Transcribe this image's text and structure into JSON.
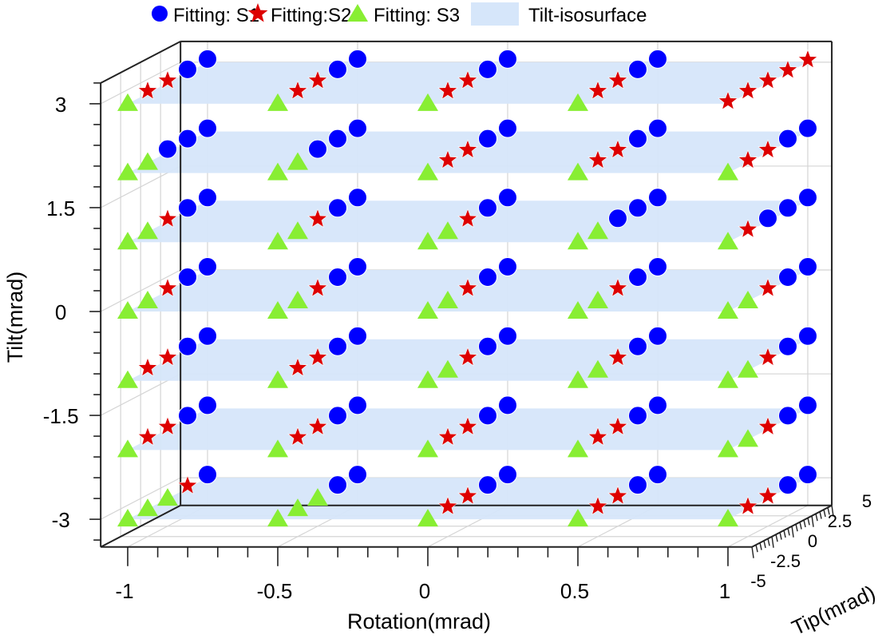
{
  "chart_data": {
    "type": "scatter3d",
    "xlabel": "Rotation(mrad)",
    "ylabel": "Tip(mrad)",
    "zlabel": "Tilt(mrad)",
    "xlim": [
      -1.09,
      1.08
    ],
    "ylim": [
      -5,
      5
    ],
    "zlim": [
      -3.4,
      3.3
    ],
    "x_ticks": [
      "-1",
      "-0.5",
      "0",
      "0.5",
      "1"
    ],
    "x_tick_values": [
      -1,
      -0.5,
      0,
      0.5,
      1
    ],
    "y_ticks": [
      "-5",
      "-2.5",
      "0",
      "2.5",
      "5"
    ],
    "y_tick_values": [
      -5,
      -2.5,
      0,
      2.5,
      5
    ],
    "z_ticks": [
      "3",
      "1.5",
      "0",
      "-1.5",
      "-3"
    ],
    "z_tick_values": [
      3,
      1.5,
      0,
      -1.5,
      -3
    ],
    "grid": true,
    "legend_position": "top",
    "series": [
      {
        "id": "S1",
        "name": "Fitting: S1",
        "marker": "circle",
        "color": "#0000ff"
      },
      {
        "id": "S2",
        "name": "Fitting:S2",
        "marker": "star",
        "color": "#dd0000"
      },
      {
        "id": "S3",
        "name": "Fitting: S3",
        "marker": "triangle",
        "color": "#88ee33"
      }
    ],
    "surface": {
      "name": "Tilt-isosurface",
      "color": "#d6e6fa",
      "tilt_levels": [
        3,
        2,
        1,
        0,
        -1,
        -2,
        -3
      ]
    },
    "tip_values": [
      -5,
      -2.5,
      0,
      2.5,
      5
    ],
    "groups": [
      {
        "rotation": -1,
        "tilt": 3,
        "fit": [
          "S3",
          "S2",
          "S2",
          "S1",
          "S1"
        ]
      },
      {
        "rotation": -1,
        "tilt": 2,
        "fit": [
          "S3",
          "S3",
          "S1",
          "S1",
          "S1"
        ]
      },
      {
        "rotation": -1,
        "tilt": 1,
        "fit": [
          "S3",
          "S3",
          "S2",
          "S1",
          "S1"
        ]
      },
      {
        "rotation": -1,
        "tilt": 0,
        "fit": [
          "S3",
          "S3",
          "S2",
          "S1",
          "S1"
        ]
      },
      {
        "rotation": -1,
        "tilt": -1,
        "fit": [
          "S3",
          "S2",
          "S2",
          "S1",
          "S1"
        ]
      },
      {
        "rotation": -1,
        "tilt": -2,
        "fit": [
          "S3",
          "S2",
          "S2",
          "S1",
          "S1"
        ]
      },
      {
        "rotation": -1,
        "tilt": -3,
        "fit": [
          "S3",
          "S3",
          "S3",
          "S2",
          "S1"
        ]
      },
      {
        "rotation": -0.5,
        "tilt": 3,
        "fit": [
          "S3",
          "S2",
          "S2",
          "S1",
          "S1"
        ]
      },
      {
        "rotation": -0.5,
        "tilt": 2,
        "fit": [
          "S3",
          "S3",
          "S1",
          "S1",
          "S1"
        ]
      },
      {
        "rotation": -0.5,
        "tilt": 1,
        "fit": [
          "S3",
          "S3",
          "S2",
          "S1",
          "S1"
        ]
      },
      {
        "rotation": -0.5,
        "tilt": 0,
        "fit": [
          "S3",
          "S3",
          "S2",
          "S1",
          "S1"
        ]
      },
      {
        "rotation": -0.5,
        "tilt": -1,
        "fit": [
          "S3",
          "S2",
          "S2",
          "S1",
          "S1"
        ]
      },
      {
        "rotation": -0.5,
        "tilt": -2,
        "fit": [
          "S3",
          "S2",
          "S2",
          "S1",
          "S1"
        ]
      },
      {
        "rotation": -0.5,
        "tilt": -3,
        "fit": [
          "S3",
          "S3",
          "S3",
          "S1",
          "S1"
        ]
      },
      {
        "rotation": 0,
        "tilt": 3,
        "fit": [
          "S3",
          "S2",
          "S2",
          "S1",
          "S1"
        ]
      },
      {
        "rotation": 0,
        "tilt": 2,
        "fit": [
          "S3",
          "S2",
          "S2",
          "S1",
          "S1"
        ]
      },
      {
        "rotation": 0,
        "tilt": 1,
        "fit": [
          "S3",
          "S3",
          "S2",
          "S1",
          "S1"
        ]
      },
      {
        "rotation": 0,
        "tilt": 0,
        "fit": [
          "S3",
          "S3",
          "S2",
          "S1",
          "S1"
        ]
      },
      {
        "rotation": 0,
        "tilt": -1,
        "fit": [
          "S3",
          "S3",
          "S2",
          "S1",
          "S1"
        ]
      },
      {
        "rotation": 0,
        "tilt": -2,
        "fit": [
          "S3",
          "S2",
          "S2",
          "S1",
          "S1"
        ]
      },
      {
        "rotation": 0,
        "tilt": -3,
        "fit": [
          "S3",
          "S2",
          "S2",
          "S1",
          "S1"
        ]
      },
      {
        "rotation": 0.5,
        "tilt": 3,
        "fit": [
          "S3",
          "S2",
          "S2",
          "S1",
          "S1"
        ]
      },
      {
        "rotation": 0.5,
        "tilt": 2,
        "fit": [
          "S3",
          "S2",
          "S2",
          "S1",
          "S1"
        ]
      },
      {
        "rotation": 0.5,
        "tilt": 1,
        "fit": [
          "S3",
          "S3",
          "S1",
          "S1",
          "S1"
        ]
      },
      {
        "rotation": 0.5,
        "tilt": 0,
        "fit": [
          "S3",
          "S3",
          "S2",
          "S1",
          "S1"
        ]
      },
      {
        "rotation": 0.5,
        "tilt": -1,
        "fit": [
          "S3",
          "S3",
          "S2",
          "S1",
          "S1"
        ]
      },
      {
        "rotation": 0.5,
        "tilt": -2,
        "fit": [
          "S3",
          "S2",
          "S2",
          "S1",
          "S1"
        ]
      },
      {
        "rotation": 0.5,
        "tilt": -3,
        "fit": [
          "S3",
          "S2",
          "S2",
          "S1",
          "S1"
        ]
      },
      {
        "rotation": 1,
        "tilt": 3,
        "fit": [
          "S2",
          "S2",
          "S2",
          "S2",
          "S2"
        ]
      },
      {
        "rotation": 1,
        "tilt": 2,
        "fit": [
          "S3",
          "S2",
          "S2",
          "S1",
          "S1"
        ]
      },
      {
        "rotation": 1,
        "tilt": 1,
        "fit": [
          "S3",
          "S2",
          "S1",
          "S1",
          "S1"
        ]
      },
      {
        "rotation": 1,
        "tilt": 0,
        "fit": [
          "S3",
          "S3",
          "S2",
          "S1",
          "S1"
        ]
      },
      {
        "rotation": 1,
        "tilt": -1,
        "fit": [
          "S3",
          "S3",
          "S2",
          "S1",
          "S1"
        ]
      },
      {
        "rotation": 1,
        "tilt": -2,
        "fit": [
          "S3",
          "S3",
          "S2",
          "S1",
          "S1"
        ]
      },
      {
        "rotation": 1,
        "tilt": -3,
        "fit": [
          "S3",
          "S2",
          "S2",
          "S1",
          "S1"
        ]
      }
    ]
  }
}
